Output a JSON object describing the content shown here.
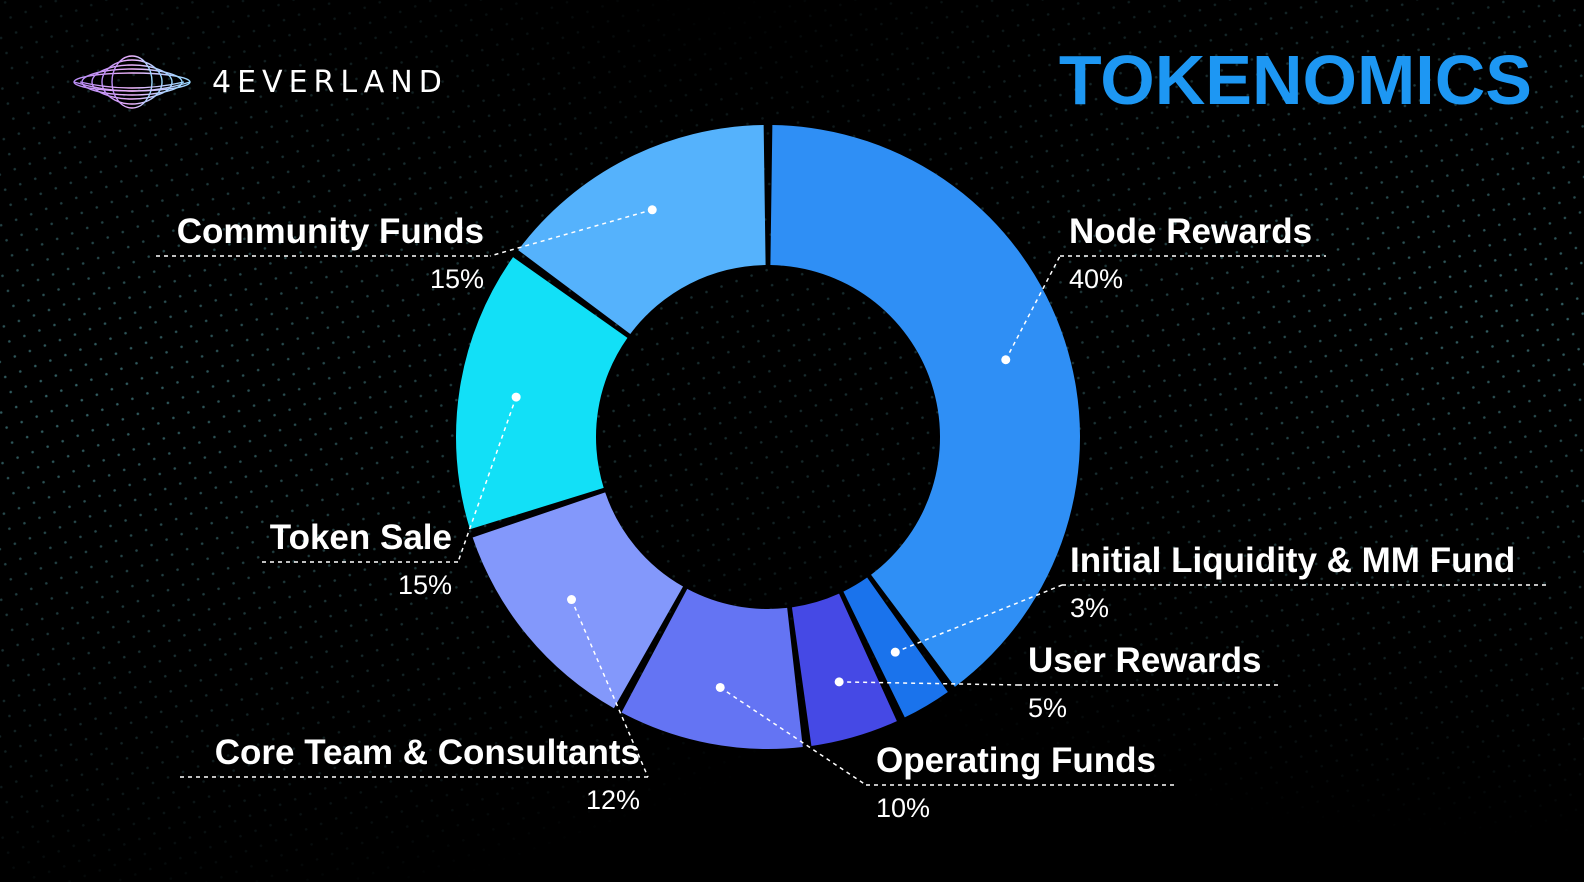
{
  "brand": {
    "name": "4EVERLAND",
    "logo_icon": "saucer-swirl-logo-icon"
  },
  "title": "TOKENOMICS",
  "colors": {
    "background": "#000000",
    "title": "#1d97f3",
    "text": "#ffffff",
    "leader_line": "#ffffff"
  },
  "chart_data": {
    "type": "pie",
    "variant": "donut",
    "title": "TOKENOMICS",
    "unit": "%",
    "start": "top",
    "direction": "clockwise",
    "legend": "none",
    "slices": [
      {
        "label": "Node Rewards",
        "value": 40,
        "value_label": "40%",
        "color": "#2f8ff5"
      },
      {
        "label": "Initial Liquidity & MM Fund",
        "value": 3,
        "value_label": "3%",
        "color": "#1a73ec"
      },
      {
        "label": "User Rewards",
        "value": 5,
        "value_label": "5%",
        "color": "#4549e5"
      },
      {
        "label": "Operating Funds",
        "value": 10,
        "value_label": "10%",
        "color": "#6474f3"
      },
      {
        "label": "Core Team & Consultants",
        "value": 12,
        "value_label": "12%",
        "color": "#8398fb"
      },
      {
        "label": "Token Sale",
        "value": 15,
        "value_label": "15%",
        "color": "#12e0f7"
      },
      {
        "label": "Community Funds",
        "value": 15,
        "value_label": "15%",
        "color": "#55b2fc"
      }
    ]
  }
}
